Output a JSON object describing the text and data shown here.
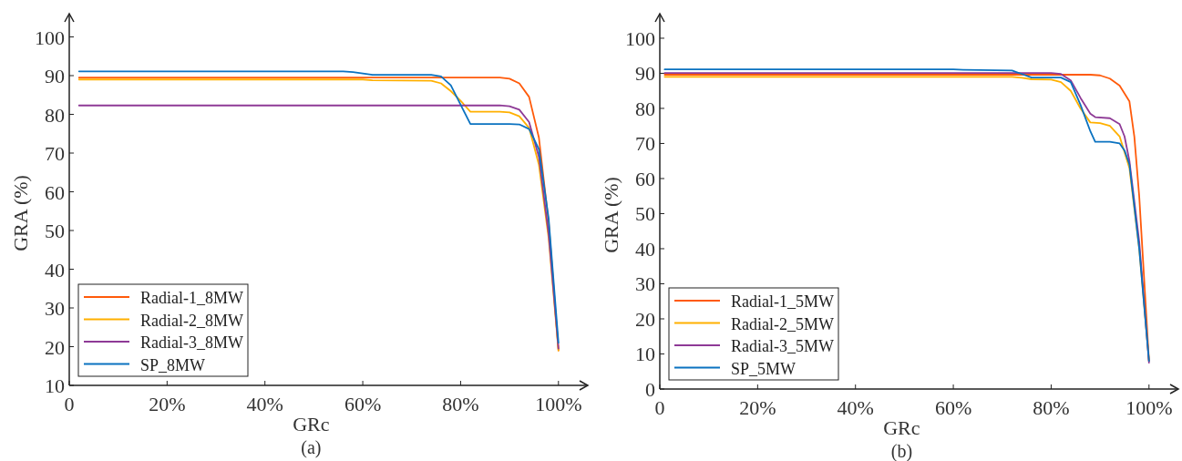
{
  "chart_data": [
    {
      "type": "line",
      "xlabel": "GRc",
      "ylabel": "GRA (%)",
      "annotations": [
        "(a)"
      ],
      "xlim": [
        0,
        106
      ],
      "ylim": [
        10,
        106
      ],
      "xticks": [
        {
          "value": 0,
          "label": "0"
        },
        {
          "value": 20,
          "label": "20%"
        },
        {
          "value": 40,
          "label": "40%"
        },
        {
          "value": 60,
          "label": "60%"
        },
        {
          "value": 80,
          "label": "80%"
        },
        {
          "value": 100,
          "label": "100%"
        }
      ],
      "yticks": [
        10,
        20,
        30,
        40,
        50,
        60,
        70,
        80,
        90,
        100
      ],
      "legend": "bottom left",
      "grid": false,
      "line_style": "solid",
      "marker": "none",
      "series": [
        {
          "name": "Radial-1_8MW",
          "color": "#ff5a0a",
          "x": [
            2,
            20,
            40,
            60,
            80,
            88,
            90,
            92,
            94,
            96,
            98,
            100
          ],
          "values": [
            89.5,
            89.5,
            89.5,
            89.5,
            89.5,
            89.5,
            89.2,
            88,
            84.5,
            74,
            52,
            19
          ]
        },
        {
          "name": "Radial-2_8MW",
          "color": "#ffb000",
          "x": [
            2,
            20,
            40,
            60,
            62,
            74,
            76,
            78,
            80,
            82,
            88,
            90,
            92,
            94,
            96,
            98,
            100
          ],
          "values": [
            89,
            89,
            89,
            89,
            88.8,
            88.7,
            88,
            86,
            83.5,
            80.7,
            80.7,
            80.5,
            79.5,
            76.5,
            67,
            48,
            19
          ]
        },
        {
          "name": "Radial-3_8MW",
          "color": "#8e3a96",
          "x": [
            2,
            20,
            40,
            60,
            80,
            88,
            90,
            92,
            94,
            96,
            98,
            100
          ],
          "values": [
            82.3,
            82.3,
            82.3,
            82.3,
            82.3,
            82.3,
            82.1,
            81.2,
            78,
            69,
            49,
            19.5
          ]
        },
        {
          "name": "SP_8MW",
          "color": "#0a72c0",
          "x": [
            2,
            20,
            40,
            56,
            58,
            62,
            74,
            76,
            78,
            80,
            82,
            90,
            92,
            94,
            96,
            98,
            100
          ],
          "values": [
            91.1,
            91.1,
            91.1,
            91.1,
            90.9,
            90.2,
            90.2,
            89.8,
            87.5,
            82.5,
            77.5,
            77.5,
            77.4,
            76.2,
            71,
            53,
            21
          ]
        }
      ]
    },
    {
      "type": "line",
      "xlabel": "GRc",
      "ylabel": "GRA (%)",
      "annotations": [
        "(b)"
      ],
      "xlim": [
        0,
        106
      ],
      "ylim": [
        0,
        107
      ],
      "xticks": [
        {
          "value": 0,
          "label": "0"
        },
        {
          "value": 20,
          "label": "20%"
        },
        {
          "value": 40,
          "label": "40%"
        },
        {
          "value": 60,
          "label": "60%"
        },
        {
          "value": 80,
          "label": "80%"
        },
        {
          "value": 100,
          "label": "100%"
        }
      ],
      "yticks": [
        0,
        10,
        20,
        30,
        40,
        50,
        60,
        70,
        80,
        90,
        100
      ],
      "legend": "bottom left",
      "grid": false,
      "line_style": "solid",
      "marker": "none",
      "series": [
        {
          "name": "Radial-1_5MW",
          "color": "#ff5a0a",
          "x": [
            1,
            20,
            40,
            60,
            80,
            88,
            90,
            92,
            94,
            96,
            97,
            98,
            100
          ],
          "values": [
            89.6,
            89.6,
            89.6,
            89.6,
            89.6,
            89.6,
            89.4,
            88.5,
            86.5,
            82,
            72,
            55,
            8
          ]
        },
        {
          "name": "Radial-2_5MW",
          "color": "#ffb000",
          "x": [
            1,
            20,
            40,
            60,
            72,
            74,
            76,
            80,
            82,
            84,
            86,
            88,
            90,
            92,
            94,
            96,
            98,
            100
          ],
          "values": [
            89,
            89,
            89,
            89,
            89,
            88.7,
            88.3,
            88.2,
            87.5,
            85,
            80,
            76,
            75.8,
            75,
            72,
            63,
            40,
            8
          ]
        },
        {
          "name": "Radial-3_5MW",
          "color": "#8e3a96",
          "x": [
            1,
            20,
            40,
            60,
            80,
            82,
            84,
            86,
            88,
            89,
            92,
            94,
            95,
            96,
            98,
            100
          ],
          "values": [
            90.1,
            90.1,
            90.1,
            90.1,
            90.1,
            89.8,
            88,
            83,
            78.5,
            77.5,
            77.2,
            75.5,
            72,
            65,
            42,
            7.5
          ]
        },
        {
          "name": "SP_5MW",
          "color": "#0a72c0",
          "x": [
            1,
            20,
            40,
            60,
            62,
            72,
            74,
            76,
            82,
            84,
            86,
            88,
            89,
            92,
            94,
            95,
            96,
            98,
            100
          ],
          "values": [
            91.1,
            91.1,
            91.1,
            91.1,
            91,
            90.8,
            89.8,
            88.8,
            88.8,
            87.5,
            81,
            73.5,
            70.5,
            70.5,
            70,
            68,
            64,
            40,
            8
          ]
        }
      ]
    }
  ]
}
